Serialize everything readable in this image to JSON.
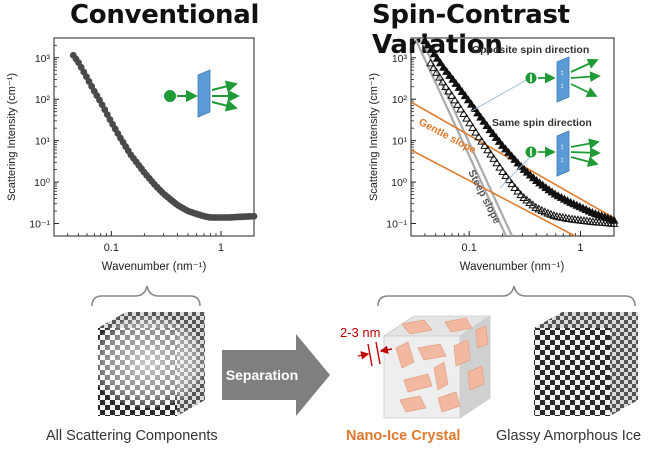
{
  "titles": {
    "left": "Conventional",
    "right": "Spin-Contrast Variation"
  },
  "captions": {
    "left": "All Scattering Components",
    "nano_ice": "Nano-Ice Crystal",
    "glassy": "Glassy Amorphous Ice",
    "separation": "Separation",
    "size": "2-3 nm"
  },
  "chart_data": [
    {
      "type": "scatter",
      "ylabel": "Scattering Intensity (cm⁻¹)",
      "xlabel": "Wavenumber (nm⁻¹)",
      "x_scale": "log",
      "y_scale": "log",
      "xlim": [
        0.03,
        2
      ],
      "ylim": [
        0.05,
        3000
      ],
      "xticks": [
        "0.1",
        "1"
      ],
      "yticks": [
        "10⁻¹",
        "10⁰",
        "10¹",
        "10²",
        "10³"
      ],
      "series": [
        {
          "marker": "circle",
          "color": "#4a4a4a",
          "x": [
            0.045,
            0.05,
            0.06,
            0.07,
            0.08,
            0.1,
            0.12,
            0.15,
            0.2,
            0.25,
            0.3,
            0.4,
            0.5,
            0.6,
            0.7,
            0.8,
            1.0,
            1.2,
            1.5,
            2.0
          ],
          "y": [
            1150,
            780,
            330,
            155,
            85,
            28,
            12,
            4.6,
            1.7,
            0.85,
            0.52,
            0.28,
            0.2,
            0.17,
            0.15,
            0.14,
            0.14,
            0.14,
            0.145,
            0.15
          ]
        }
      ]
    },
    {
      "type": "scatter",
      "ylabel": "Scattering Intensity (cm⁻¹)",
      "xlabel": "Wavenumber (nm⁻¹)",
      "x_scale": "log",
      "y_scale": "log",
      "xlim": [
        0.03,
        2
      ],
      "ylim": [
        0.05,
        3000
      ],
      "xticks": [
        "0.1",
        "1"
      ],
      "yticks": [
        "10⁻¹",
        "10⁰",
        "10¹",
        "10²",
        "10³"
      ],
      "series": [
        {
          "name": "Opposite spin direction",
          "marker": "filled-triangle",
          "color": "#111111",
          "x": [
            0.04,
            0.05,
            0.06,
            0.07,
            0.08,
            0.1,
            0.12,
            0.15,
            0.2,
            0.25,
            0.3,
            0.4,
            0.5,
            0.6,
            0.8,
            1.0,
            1.3,
            1.7,
            2.0
          ],
          "y": [
            2600,
            1100,
            540,
            320,
            200,
            90,
            45,
            20,
            7.5,
            3.8,
            2.2,
            1.1,
            0.7,
            0.5,
            0.33,
            0.25,
            0.18,
            0.14,
            0.12
          ]
        },
        {
          "name": "Same spin direction",
          "marker": "open-triangle",
          "color": "#111111",
          "x": [
            0.045,
            0.05,
            0.06,
            0.07,
            0.08,
            0.1,
            0.12,
            0.15,
            0.2,
            0.25,
            0.3,
            0.4,
            0.5,
            0.6,
            0.8,
            1.0,
            1.3,
            1.7,
            2.0
          ],
          "y": [
            750,
            480,
            220,
            120,
            70,
            28,
            13,
            5.5,
            1.8,
            0.8,
            0.45,
            0.24,
            0.18,
            0.15,
            0.13,
            0.12,
            0.11,
            0.105,
            0.1
          ]
        }
      ],
      "annotations": [
        "Opposite spin direction",
        "Same spin direction",
        "Gentle slope",
        "Steep slope"
      ]
    }
  ],
  "colors": {
    "accent_orange": "#e07a2e",
    "arrow_green": "#1f9a35",
    "panel_blue": "#5b9bd5",
    "crystal": "#f2b8a0",
    "dim_red": "#c00000",
    "separation_arrow": "#7f7f7f"
  }
}
